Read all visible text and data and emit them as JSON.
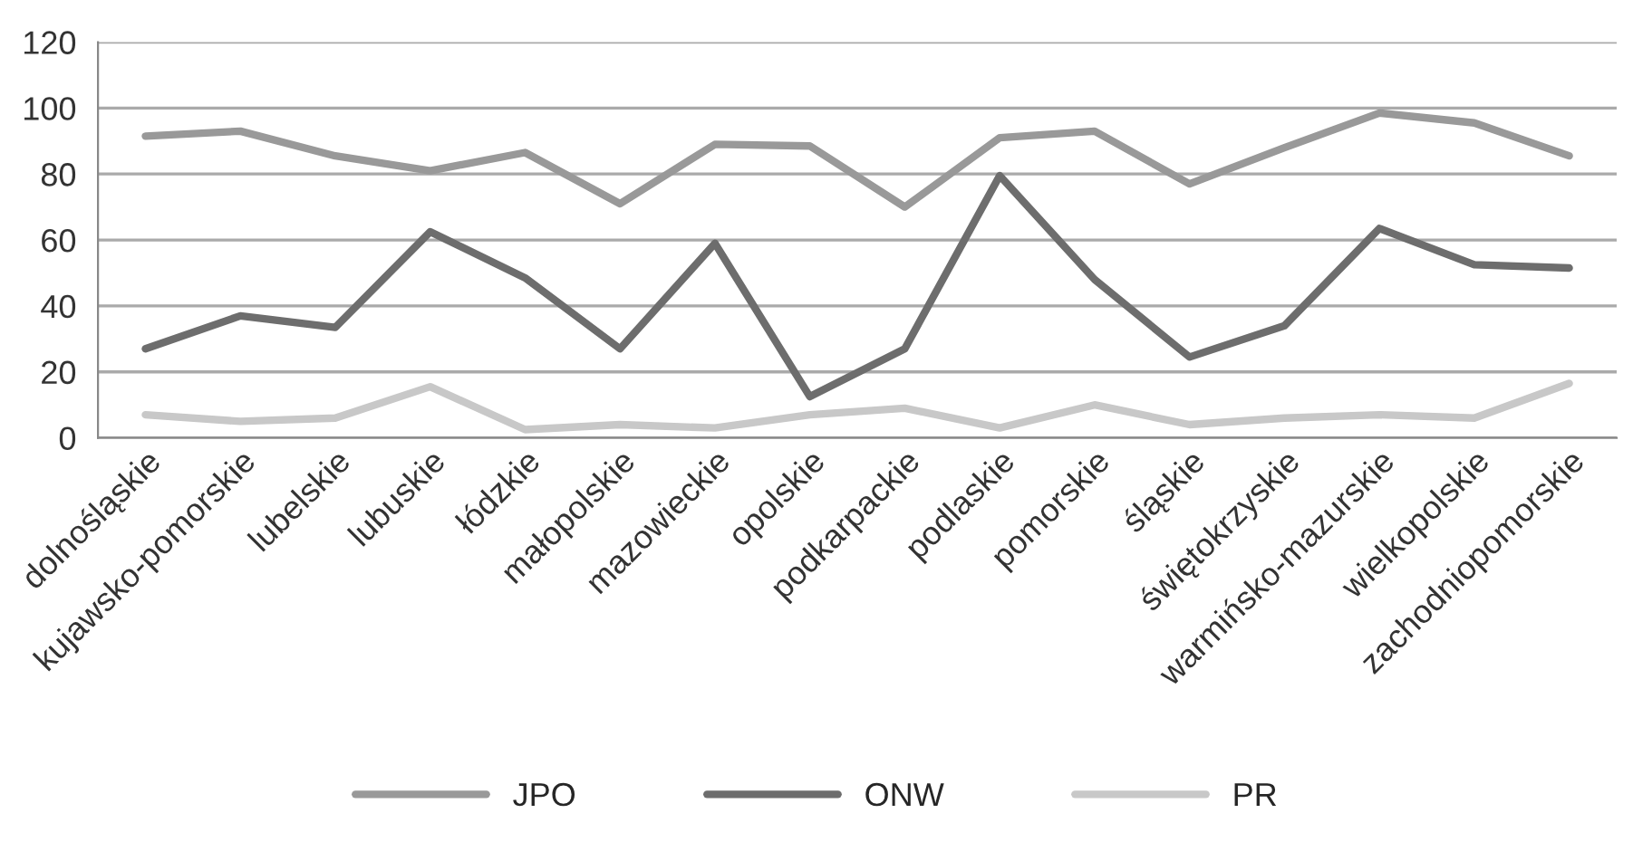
{
  "chart_data": {
    "type": "line",
    "categories": [
      "dolnośląskie",
      "kujawsko-pomorskie",
      "lubelskie",
      "lubuskie",
      "łódzkie",
      "małopolskie",
      "mazowieckie",
      "opolskie",
      "podkarpackie",
      "podlaskie",
      "pomorskie",
      "śląskie",
      "świętokrzyskie",
      "warmińsko-mazurskie",
      "wielkopolskie",
      "zachodniopomorskie"
    ],
    "series": [
      {
        "name": "JPO",
        "color": "#999999",
        "values": [
          91.5,
          93,
          85.5,
          81,
          86.5,
          71,
          89,
          88.5,
          70,
          91,
          93,
          77,
          88,
          98.5,
          95.5,
          85.5
        ]
      },
      {
        "name": "ONW",
        "color": "#6d6d6d",
        "values": [
          27,
          37,
          33.5,
          62.5,
          48.5,
          27,
          59,
          12.5,
          27,
          79.5,
          48,
          24.5,
          34,
          63.5,
          52.5,
          51.5
        ]
      },
      {
        "name": "PR",
        "color": "#c8c8c8",
        "values": [
          7,
          5,
          6,
          15.5,
          2.5,
          4,
          3,
          7,
          9,
          3,
          10,
          4,
          6,
          7,
          6,
          16.5
        ]
      }
    ],
    "ylim": [
      0,
      120
    ],
    "yticks": [
      0,
      20,
      40,
      60,
      80,
      100,
      120
    ],
    "grid": "y",
    "legend": "bottom",
    "marker": "none",
    "line_style": "solid"
  }
}
